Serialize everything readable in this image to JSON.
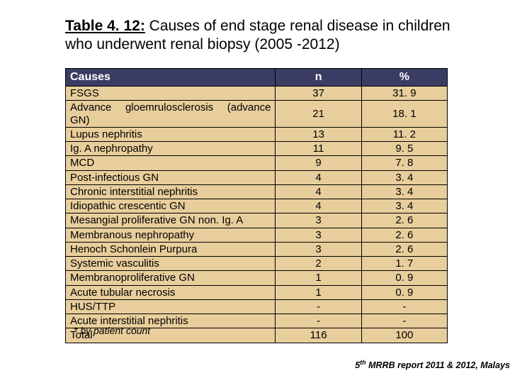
{
  "title": {
    "label": "Table 4. 12:",
    "text": " Causes of end stage renal disease in children who underwent renal biopsy (2005 -2012)"
  },
  "table": {
    "headers": [
      "Causes",
      "n",
      "%"
    ],
    "col_widths_pct": [
      55,
      22.5,
      22.5
    ],
    "header_bg": "#3b3c64",
    "header_fg": "#ffffff",
    "body_bg": "#e8ce9c",
    "border_color": "#000000",
    "font_size_header": 16,
    "font_size_body": 15,
    "rows": [
      {
        "cause": "FSGS",
        "n": "37",
        "pct": "31. 9",
        "justify": false
      },
      {
        "cause": "Advance gloemrulosclerosis (advance GN)",
        "n": "21",
        "pct": "18. 1",
        "justify": true
      },
      {
        "cause": "Lupus nephritis",
        "n": "13",
        "pct": "11. 2",
        "justify": false
      },
      {
        "cause": "Ig. A nephropathy",
        "n": "11",
        "pct": "9. 5",
        "justify": false
      },
      {
        "cause": "MCD",
        "n": "9",
        "pct": "7. 8",
        "justify": false
      },
      {
        "cause": "Post-infectious GN",
        "n": "4",
        "pct": "3. 4",
        "justify": false
      },
      {
        "cause": "Chronic interstitial nephritis",
        "n": "4",
        "pct": "3. 4",
        "justify": false
      },
      {
        "cause": "Idiopathic crescentic GN",
        "n": "4",
        "pct": "3. 4",
        "justify": false
      },
      {
        "cause": "Mesangial proliferative GN non. Ig. A",
        "n": "3",
        "pct": "2. 6",
        "justify": true
      },
      {
        "cause": "Membranous nephropathy",
        "n": "3",
        "pct": "2. 6",
        "justify": false
      },
      {
        "cause": "Henoch Schonlein Purpura",
        "n": "3",
        "pct": "2. 6",
        "justify": false
      },
      {
        "cause": "Systemic vasculitis",
        "n": "2",
        "pct": "1. 7",
        "justify": false
      },
      {
        "cause": "Membranoproliferative  GN",
        "n": "1",
        "pct": "0. 9",
        "justify": false
      },
      {
        "cause": "Acute tubular necrosis",
        "n": "1",
        "pct": "0. 9",
        "justify": false
      },
      {
        "cause": "HUS/TTP",
        "n": "-",
        "pct": "-",
        "justify": false
      },
      {
        "cause": "Acute interstitial nephritis",
        "n": "-",
        "pct": "-",
        "justify": false
      },
      {
        "cause": "Total",
        "n": "116",
        "pct": "100",
        "justify": false
      }
    ]
  },
  "footnote": "* by patient count",
  "citation": {
    "sup": "th",
    "prefix": "5",
    "rest": " MRRB report 2011 & 2012, Malays"
  },
  "colors": {
    "page_bg": "#ffffff",
    "text": "#000000"
  }
}
